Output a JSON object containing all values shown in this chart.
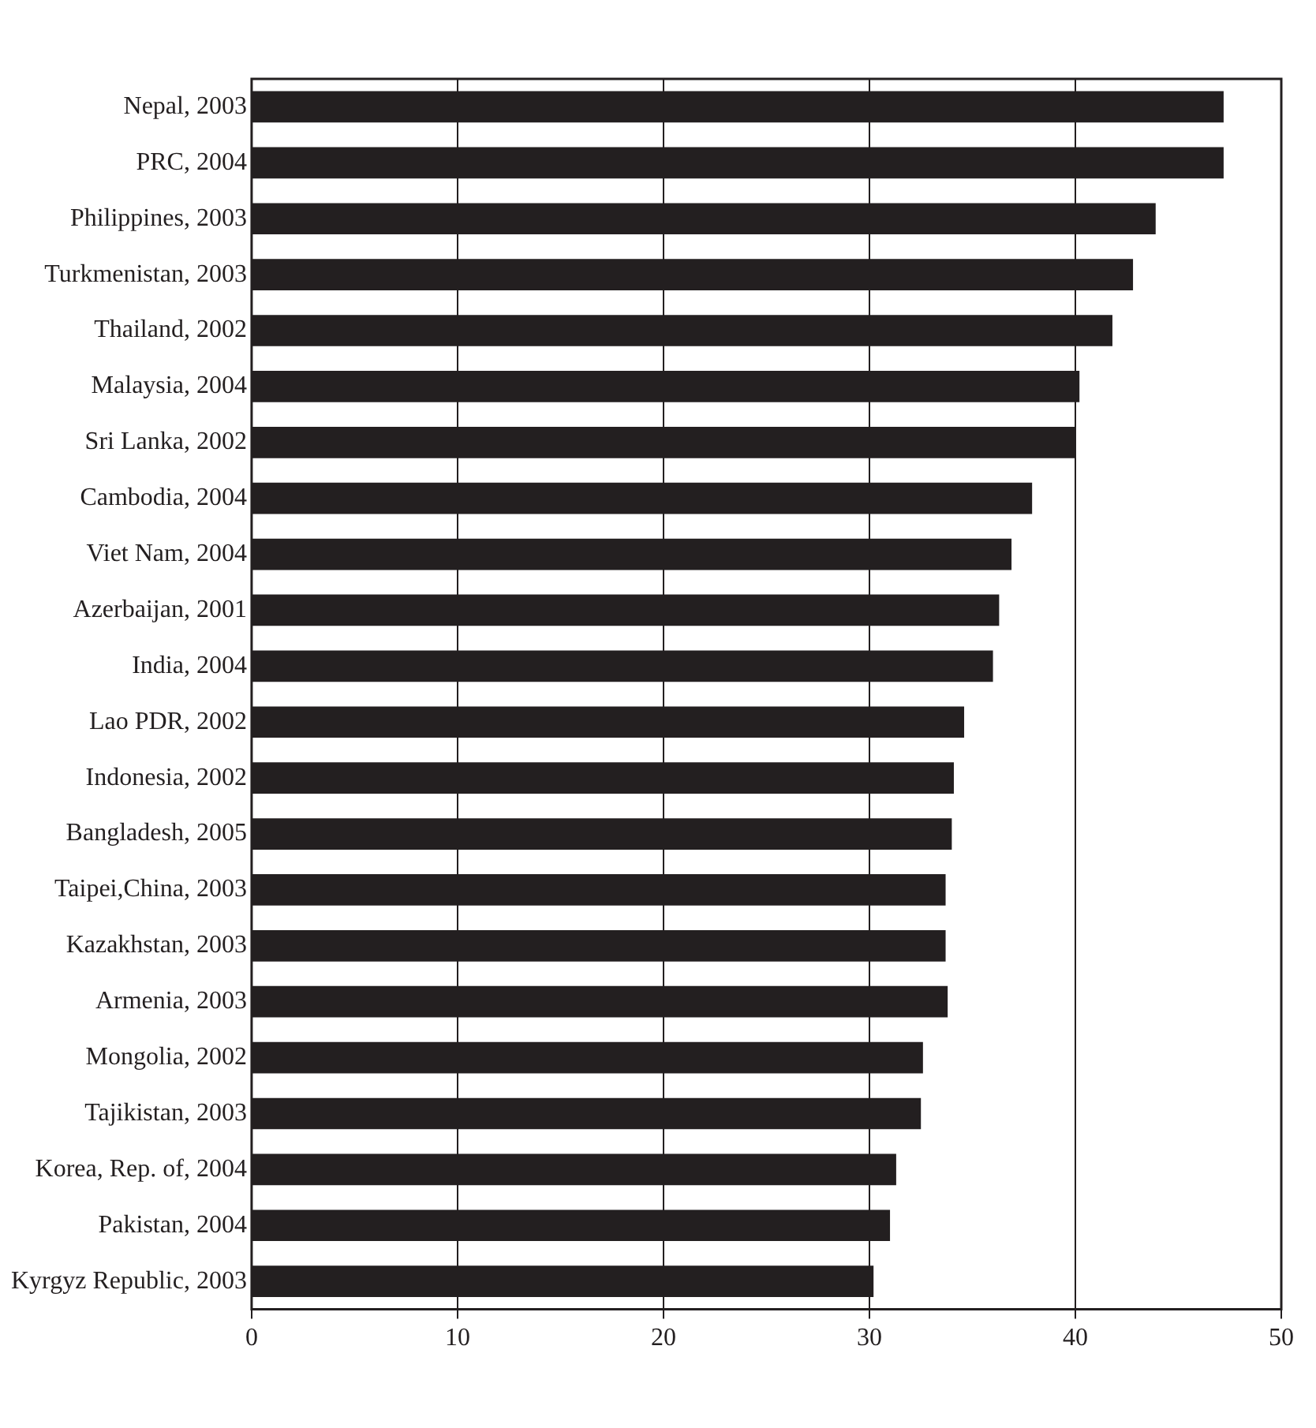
{
  "chart_data": {
    "type": "bar",
    "orientation": "horizontal",
    "categories": [
      "Nepal, 2003",
      "PRC, 2004",
      "Philippines, 2003",
      "Turkmenistan, 2003",
      "Thailand, 2002",
      "Malaysia, 2004",
      "Sri Lanka, 2002",
      "Cambodia, 2004",
      "Viet Nam, 2004",
      "Azerbaijan, 2001",
      "India, 2004",
      "Lao PDR, 2002",
      "Indonesia, 2002",
      "Bangladesh, 2005",
      "Taipei,China, 2003",
      "Kazakhstan, 2003",
      "Armenia, 2003",
      "Mongolia, 2002",
      "Tajikistan, 2003",
      "Korea, Rep. of, 2004",
      "Pakistan, 2004",
      "Kyrgyz Republic, 2003"
    ],
    "values": [
      47.2,
      47.2,
      43.9,
      42.8,
      41.8,
      40.2,
      40.0,
      37.9,
      36.9,
      36.3,
      36.0,
      34.6,
      34.1,
      34.0,
      33.7,
      33.7,
      33.8,
      32.6,
      32.5,
      31.3,
      31.0,
      30.2
    ],
    "color": "#231f20",
    "xlim": [
      0,
      50
    ],
    "xticks": [
      0,
      10,
      20,
      30,
      40,
      50
    ],
    "grid": "x",
    "legend": false
  }
}
